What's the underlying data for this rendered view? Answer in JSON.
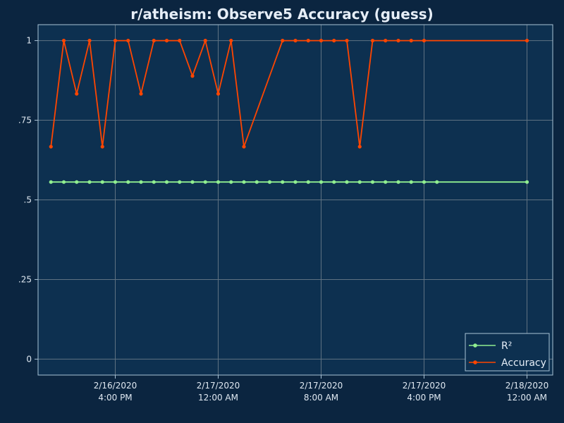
{
  "chart_data": {
    "type": "line",
    "title": "r/atheism: Observe5 Accuracy (guess)",
    "xlabel": "",
    "ylabel": "",
    "xlim": [
      "2020-02-16T10:00",
      "2020-02-18T02:00"
    ],
    "ylim": [
      -0.05,
      1.05
    ],
    "x_ticks": [
      {
        "x": "2020-02-16T16:00",
        "label": [
          "2/16/2020",
          "4:00 PM"
        ]
      },
      {
        "x": "2020-02-17T00:00",
        "label": [
          "2/17/2020",
          "12:00 AM"
        ]
      },
      {
        "x": "2020-02-17T08:00",
        "label": [
          "2/17/2020",
          "8:00 AM"
        ]
      },
      {
        "x": "2020-02-17T16:00",
        "label": [
          "2/17/2020",
          "4:00 PM"
        ]
      },
      {
        "x": "2020-02-18T00:00",
        "label": [
          "2/18/2020",
          "12:00 AM"
        ]
      }
    ],
    "y_ticks": [
      {
        "y": 0,
        "label": "0"
      },
      {
        "y": 0.25,
        "label": ".25"
      },
      {
        "y": 0.5,
        "label": ".5"
      },
      {
        "y": 0.75,
        "label": ".75"
      },
      {
        "y": 1,
        "label": "1"
      }
    ],
    "grid": true,
    "legend_position": "bottom-right",
    "series": [
      {
        "name": "R²",
        "color": "#90ee90",
        "points": [
          {
            "x": "2020-02-16T11:00",
            "y": 0.556
          },
          {
            "x": "2020-02-16T12:00",
            "y": 0.556
          },
          {
            "x": "2020-02-16T13:00",
            "y": 0.556
          },
          {
            "x": "2020-02-16T14:00",
            "y": 0.556
          },
          {
            "x": "2020-02-16T15:00",
            "y": 0.556
          },
          {
            "x": "2020-02-16T16:00",
            "y": 0.556
          },
          {
            "x": "2020-02-16T17:00",
            "y": 0.556
          },
          {
            "x": "2020-02-16T18:00",
            "y": 0.556
          },
          {
            "x": "2020-02-16T19:00",
            "y": 0.556
          },
          {
            "x": "2020-02-16T20:00",
            "y": 0.556
          },
          {
            "x": "2020-02-16T21:00",
            "y": 0.556
          },
          {
            "x": "2020-02-16T22:00",
            "y": 0.556
          },
          {
            "x": "2020-02-16T23:00",
            "y": 0.556
          },
          {
            "x": "2020-02-17T00:00",
            "y": 0.556
          },
          {
            "x": "2020-02-17T01:00",
            "y": 0.556
          },
          {
            "x": "2020-02-17T02:00",
            "y": 0.556
          },
          {
            "x": "2020-02-17T03:00",
            "y": 0.556
          },
          {
            "x": "2020-02-17T04:00",
            "y": 0.556
          },
          {
            "x": "2020-02-17T05:00",
            "y": 0.556
          },
          {
            "x": "2020-02-17T06:00",
            "y": 0.556
          },
          {
            "x": "2020-02-17T07:00",
            "y": 0.556
          },
          {
            "x": "2020-02-17T08:00",
            "y": 0.556
          },
          {
            "x": "2020-02-17T09:00",
            "y": 0.556
          },
          {
            "x": "2020-02-17T10:00",
            "y": 0.556
          },
          {
            "x": "2020-02-17T11:00",
            "y": 0.556
          },
          {
            "x": "2020-02-17T12:00",
            "y": 0.556
          },
          {
            "x": "2020-02-17T13:00",
            "y": 0.556
          },
          {
            "x": "2020-02-17T14:00",
            "y": 0.556
          },
          {
            "x": "2020-02-17T15:00",
            "y": 0.556
          },
          {
            "x": "2020-02-17T16:00",
            "y": 0.556
          },
          {
            "x": "2020-02-17T17:00",
            "y": 0.556
          },
          {
            "x": "2020-02-18T00:00",
            "y": 0.556
          }
        ]
      },
      {
        "name": "Accuracy",
        "color": "#ff4500",
        "points": [
          {
            "x": "2020-02-16T11:00",
            "y": 0.667
          },
          {
            "x": "2020-02-16T12:00",
            "y": 1.0
          },
          {
            "x": "2020-02-16T13:00",
            "y": 0.833
          },
          {
            "x": "2020-02-16T14:00",
            "y": 1.0
          },
          {
            "x": "2020-02-16T15:00",
            "y": 0.667
          },
          {
            "x": "2020-02-16T16:00",
            "y": 1.0
          },
          {
            "x": "2020-02-16T17:00",
            "y": 1.0
          },
          {
            "x": "2020-02-16T18:00",
            "y": 0.833
          },
          {
            "x": "2020-02-16T19:00",
            "y": 1.0
          },
          {
            "x": "2020-02-16T20:00",
            "y": 1.0
          },
          {
            "x": "2020-02-16T21:00",
            "y": 1.0
          },
          {
            "x": "2020-02-16T22:00",
            "y": 0.889
          },
          {
            "x": "2020-02-16T23:00",
            "y": 1.0
          },
          {
            "x": "2020-02-17T00:00",
            "y": 0.833
          },
          {
            "x": "2020-02-17T01:00",
            "y": 1.0
          },
          {
            "x": "2020-02-17T02:00",
            "y": 0.667
          },
          {
            "x": "2020-02-17T05:00",
            "y": 1.0
          },
          {
            "x": "2020-02-17T06:00",
            "y": 1.0
          },
          {
            "x": "2020-02-17T07:00",
            "y": 1.0
          },
          {
            "x": "2020-02-17T08:00",
            "y": 1.0
          },
          {
            "x": "2020-02-17T09:00",
            "y": 1.0
          },
          {
            "x": "2020-02-17T10:00",
            "y": 1.0
          },
          {
            "x": "2020-02-17T11:00",
            "y": 0.667
          },
          {
            "x": "2020-02-17T12:00",
            "y": 1.0
          },
          {
            "x": "2020-02-17T13:00",
            "y": 1.0
          },
          {
            "x": "2020-02-17T14:00",
            "y": 1.0
          },
          {
            "x": "2020-02-17T15:00",
            "y": 1.0
          },
          {
            "x": "2020-02-17T16:00",
            "y": 1.0
          },
          {
            "x": "2020-02-18T00:00",
            "y": 1.0
          }
        ]
      }
    ]
  },
  "colors": {
    "page_background": "#0b2540",
    "plot_background": "#0d3050",
    "grid": "#5f7282",
    "frame": "#a9c3d6",
    "text": "#e6eef7"
  }
}
